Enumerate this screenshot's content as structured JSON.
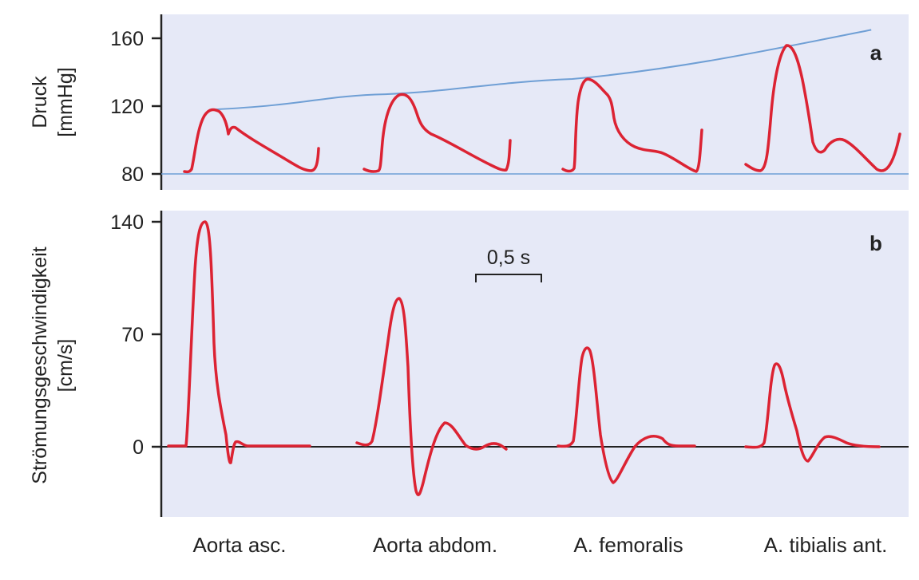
{
  "colors": {
    "panel_bg": "#e6e9f7",
    "pressure_curve": "#dc2333",
    "velocity_curve": "#dc2333",
    "reference_line": "#6f9fd5",
    "axis": "#222222"
  },
  "chart_data": [
    {
      "type": "line",
      "panel_label": "a",
      "ylabel_line1": "Druck",
      "ylabel_line2": "[mmHg]",
      "ylim": [
        80,
        170
      ],
      "yticks": [
        "80",
        "120",
        "160"
      ],
      "yticks_values": [
        80,
        120,
        160
      ],
      "categories": [
        "Aorta asc.",
        "Aorta abdom.",
        "A. femoralis",
        "A. tibialis ant."
      ],
      "peaks": [
        118,
        127,
        136,
        156
      ],
      "envelope": {
        "x": [
          0.07,
          0.3,
          0.55,
          0.95
        ],
        "y": [
          118,
          127,
          136,
          165
        ]
      },
      "baseline": 80
    },
    {
      "type": "line",
      "panel_label": "b",
      "ylabel_line1": "Strömungsgeschwindigkeit",
      "ylabel_line2": "[cm/s]",
      "ylim": [
        -43,
        145
      ],
      "yticks": [
        "0",
        "70",
        "140"
      ],
      "yticks_values": [
        0,
        70,
        140
      ],
      "categories": [
        "Aorta asc.",
        "Aorta abdom.",
        "A. femoralis",
        "A. tibialis ant."
      ],
      "peaks": [
        139,
        92,
        62,
        52
      ],
      "minima": [
        -10,
        -30,
        -21,
        -8
      ],
      "scale_bar_label": "0,5 s",
      "scale_bar_seconds": 0.5
    }
  ]
}
